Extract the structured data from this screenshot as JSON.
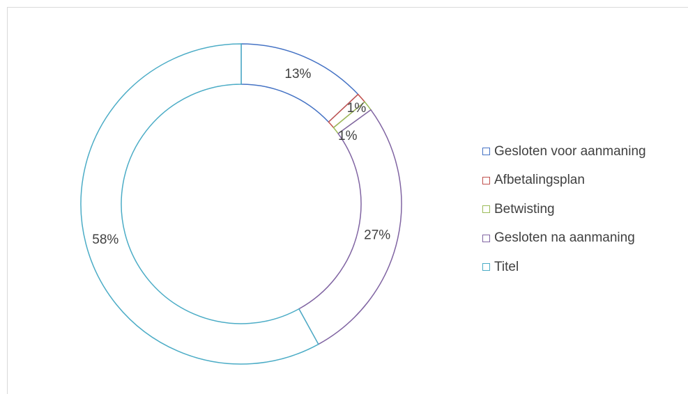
{
  "chart_data": {
    "type": "pie",
    "variant": "donut",
    "title": "",
    "legend_position": "right",
    "series": [
      {
        "name": "Gesloten voor aanmaning",
        "value": 13,
        "label": "13%",
        "color": "#4472c4"
      },
      {
        "name": "Afbetalingsplan",
        "value": 1,
        "label": "1%",
        "color": "#c0504d"
      },
      {
        "name": "Betwisting",
        "value": 1,
        "label": "1%",
        "color": "#9bbb59"
      },
      {
        "name": "Gesloten na aanmaning",
        "value": 27,
        "label": "27%",
        "color": "#8064a2"
      },
      {
        "name": "Titel",
        "value": 58,
        "label": "58%",
        "color": "#4bacc6"
      }
    ]
  }
}
